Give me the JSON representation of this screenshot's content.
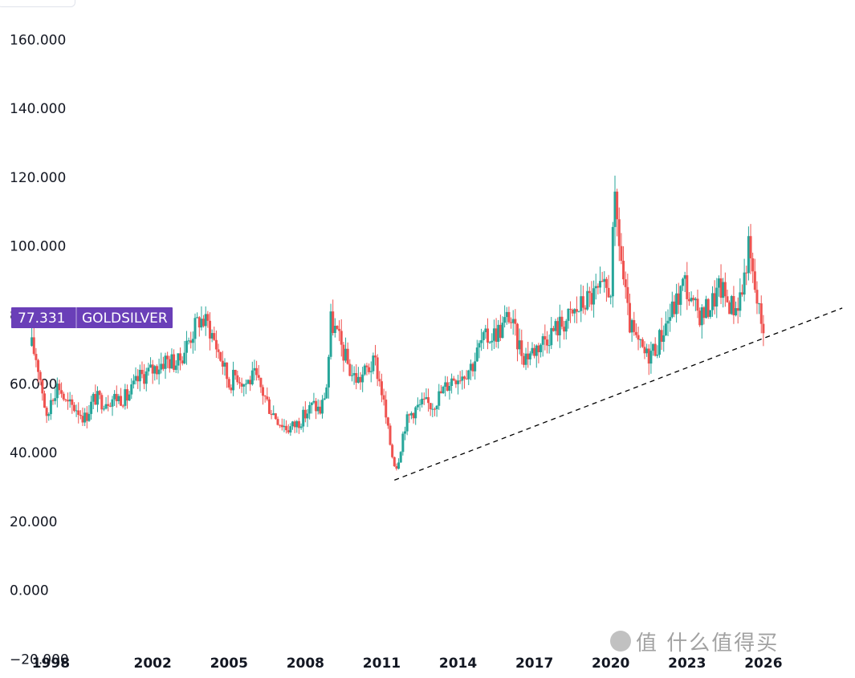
{
  "chart_data": {
    "type": "candlestick",
    "symbol": "GOLDSILVER",
    "last_price": "77.331",
    "y_ticks": [
      "160.000",
      "140.000",
      "120.000",
      "100.000",
      "80.000",
      "60.000",
      "40.000",
      "20.000",
      "0.000",
      "−20.000"
    ],
    "y_tick_values": [
      160,
      140,
      120,
      100,
      80,
      60,
      40,
      20,
      0,
      -20
    ],
    "x_ticks": [
      "1998",
      "2002",
      "2005",
      "2008",
      "2011",
      "2014",
      "2017",
      "2020",
      "2023",
      "2026"
    ],
    "ylim": [
      -22,
      168
    ],
    "xlim": [
      1996.0,
      2029.6
    ],
    "grid": false,
    "colors": {
      "up": "#26a69a",
      "down": "#ef5350",
      "badge": "#6a3fb8",
      "trendline": "#000000",
      "text": "#131722"
    },
    "price_path": [
      [
        1997.25,
        71
      ],
      [
        1997.45,
        67
      ],
      [
        1997.7,
        57
      ],
      [
        1997.85,
        48
      ],
      [
        1998.0,
        56
      ],
      [
        1998.3,
        60
      ],
      [
        1998.6,
        54
      ],
      [
        1999.0,
        53
      ],
      [
        1999.35,
        50
      ],
      [
        1999.7,
        56
      ],
      [
        2000.0,
        55
      ],
      [
        2000.5,
        56
      ],
      [
        2001.0,
        56
      ],
      [
        2001.5,
        62
      ],
      [
        2002.0,
        64
      ],
      [
        2002.5,
        67
      ],
      [
        2003.0,
        66
      ],
      [
        2003.5,
        74
      ],
      [
        2003.85,
        79
      ],
      [
        2004.2,
        77
      ],
      [
        2004.45,
        72
      ],
      [
        2004.75,
        66
      ],
      [
        2005.0,
        60
      ],
      [
        2005.3,
        63
      ],
      [
        2005.6,
        60
      ],
      [
        2006.0,
        62
      ],
      [
        2006.3,
        58
      ],
      [
        2006.6,
        53
      ],
      [
        2007.0,
        49
      ],
      [
        2007.3,
        47
      ],
      [
        2007.6,
        48
      ],
      [
        2008.0,
        51
      ],
      [
        2008.3,
        54
      ],
      [
        2008.6,
        52
      ],
      [
        2008.85,
        60
      ],
      [
        2009.0,
        78
      ],
      [
        2009.15,
        76
      ],
      [
        2009.45,
        70
      ],
      [
        2009.8,
        63
      ],
      [
        2010.1,
        61
      ],
      [
        2010.4,
        64
      ],
      [
        2010.75,
        66
      ],
      [
        2011.0,
        58
      ],
      [
        2011.25,
        46
      ],
      [
        2011.45,
        38
      ],
      [
        2011.6,
        36
      ],
      [
        2011.9,
        48
      ],
      [
        2012.2,
        52
      ],
      [
        2012.6,
        54
      ],
      [
        2013.0,
        54
      ],
      [
        2013.4,
        58
      ],
      [
        2013.8,
        62
      ],
      [
        2014.2,
        63
      ],
      [
        2014.6,
        66
      ],
      [
        2014.9,
        72
      ],
      [
        2015.3,
        74
      ],
      [
        2015.7,
        76
      ],
      [
        2016.0,
        80
      ],
      [
        2016.3,
        73
      ],
      [
        2016.6,
        68
      ],
      [
        2017.0,
        70
      ],
      [
        2017.5,
        74
      ],
      [
        2018.0,
        77
      ],
      [
        2018.5,
        80
      ],
      [
        2019.0,
        84
      ],
      [
        2019.4,
        86
      ],
      [
        2019.8,
        87
      ],
      [
        2020.0,
        88
      ],
      [
        2020.15,
        112
      ],
      [
        2020.3,
        104
      ],
      [
        2020.5,
        90
      ],
      [
        2020.7,
        78
      ],
      [
        2021.0,
        72
      ],
      [
        2021.4,
        68
      ],
      [
        2021.8,
        71
      ],
      [
        2022.2,
        78
      ],
      [
        2022.6,
        84
      ],
      [
        2022.9,
        90
      ],
      [
        2023.2,
        82
      ],
      [
        2023.6,
        80
      ],
      [
        2024.0,
        84
      ],
      [
        2024.3,
        88
      ],
      [
        2024.6,
        84
      ],
      [
        2024.9,
        82
      ],
      [
        2025.2,
        88
      ],
      [
        2025.4,
        100
      ],
      [
        2025.6,
        90
      ],
      [
        2025.85,
        80
      ],
      [
        2026.0,
        77.3
      ]
    ],
    "trendline": {
      "start": [
        2011.5,
        32
      ],
      "end": [
        2029.1,
        82
      ]
    }
  },
  "watermark": "值 什么值得买"
}
